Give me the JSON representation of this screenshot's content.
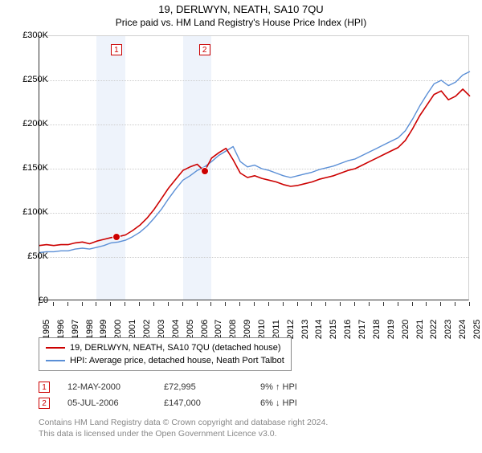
{
  "title": "19, DERLWYN, NEATH, SA10 7QU",
  "subtitle": "Price paid vs. HM Land Registry's House Price Index (HPI)",
  "chart": {
    "type": "line",
    "background_color": "#ffffff",
    "grid_color": "#cccccc",
    "axis_color": "#333333",
    "shade_color": "#eef3fb",
    "x": {
      "min": 1995,
      "max": 2025,
      "ticks": [
        1995,
        1996,
        1997,
        1998,
        1999,
        2000,
        2001,
        2002,
        2003,
        2004,
        2005,
        2006,
        2007,
        2008,
        2009,
        2010,
        2011,
        2012,
        2013,
        2014,
        2015,
        2016,
        2017,
        2018,
        2019,
        2020,
        2021,
        2022,
        2023,
        2024,
        2025
      ]
    },
    "y": {
      "min": 0,
      "max": 300000,
      "tick_step": 50000,
      "labels": [
        "£0",
        "£50K",
        "£100K",
        "£150K",
        "£200K",
        "£250K",
        "£300K"
      ]
    },
    "shaded_years": [
      1999,
      2000,
      2005,
      2006
    ],
    "series": [
      {
        "name": "19, DERLWYN, NEATH, SA10 7QU (detached house)",
        "color": "#cc0000",
        "line_width": 1.6,
        "data": [
          [
            1995,
            63000
          ],
          [
            1995.5,
            64000
          ],
          [
            1996,
            63000
          ],
          [
            1996.5,
            64000
          ],
          [
            1997,
            64000
          ],
          [
            1997.5,
            66000
          ],
          [
            1998,
            67000
          ],
          [
            1998.5,
            65000
          ],
          [
            1999,
            68000
          ],
          [
            1999.5,
            70000
          ],
          [
            2000,
            72000
          ],
          [
            2000.37,
            72995
          ],
          [
            2000.5,
            73000
          ],
          [
            2001,
            75000
          ],
          [
            2001.5,
            80000
          ],
          [
            2002,
            86000
          ],
          [
            2002.5,
            94000
          ],
          [
            2003,
            104000
          ],
          [
            2003.5,
            116000
          ],
          [
            2004,
            128000
          ],
          [
            2004.5,
            138000
          ],
          [
            2005,
            148000
          ],
          [
            2005.5,
            152000
          ],
          [
            2006,
            155000
          ],
          [
            2006.51,
            147000
          ],
          [
            2007,
            162000
          ],
          [
            2007.5,
            168000
          ],
          [
            2008,
            173000
          ],
          [
            2008.5,
            160000
          ],
          [
            2009,
            145000
          ],
          [
            2009.5,
            140000
          ],
          [
            2010,
            142000
          ],
          [
            2010.5,
            139000
          ],
          [
            2011,
            137000
          ],
          [
            2011.5,
            135000
          ],
          [
            2012,
            132000
          ],
          [
            2012.5,
            130000
          ],
          [
            2013,
            131000
          ],
          [
            2013.5,
            133000
          ],
          [
            2014,
            135000
          ],
          [
            2014.5,
            138000
          ],
          [
            2015,
            140000
          ],
          [
            2015.5,
            142000
          ],
          [
            2016,
            145000
          ],
          [
            2016.5,
            148000
          ],
          [
            2017,
            150000
          ],
          [
            2017.5,
            154000
          ],
          [
            2018,
            158000
          ],
          [
            2018.5,
            162000
          ],
          [
            2019,
            166000
          ],
          [
            2019.5,
            170000
          ],
          [
            2020,
            174000
          ],
          [
            2020.5,
            182000
          ],
          [
            2021,
            195000
          ],
          [
            2021.5,
            210000
          ],
          [
            2022,
            222000
          ],
          [
            2022.5,
            234000
          ],
          [
            2023,
            238000
          ],
          [
            2023.5,
            228000
          ],
          [
            2024,
            232000
          ],
          [
            2024.5,
            240000
          ],
          [
            2025,
            232000
          ]
        ]
      },
      {
        "name": "HPI: Average price, detached house, Neath Port Talbot",
        "color": "#5b8fd6",
        "line_width": 1.4,
        "data": [
          [
            1995,
            55000
          ],
          [
            1995.5,
            56000
          ],
          [
            1996,
            56000
          ],
          [
            1996.5,
            57000
          ],
          [
            1997,
            57000
          ],
          [
            1997.5,
            59000
          ],
          [
            1998,
            60000
          ],
          [
            1998.5,
            59000
          ],
          [
            1999,
            61000
          ],
          [
            1999.5,
            63000
          ],
          [
            2000,
            66000
          ],
          [
            2000.5,
            67000
          ],
          [
            2001,
            69000
          ],
          [
            2001.5,
            73000
          ],
          [
            2002,
            78000
          ],
          [
            2002.5,
            85000
          ],
          [
            2003,
            94000
          ],
          [
            2003.5,
            104000
          ],
          [
            2004,
            116000
          ],
          [
            2004.5,
            127000
          ],
          [
            2005,
            137000
          ],
          [
            2005.5,
            142000
          ],
          [
            2006,
            148000
          ],
          [
            2006.5,
            152000
          ],
          [
            2007,
            158000
          ],
          [
            2007.5,
            165000
          ],
          [
            2008,
            170000
          ],
          [
            2008.5,
            175000
          ],
          [
            2009,
            158000
          ],
          [
            2009.5,
            152000
          ],
          [
            2010,
            154000
          ],
          [
            2010.5,
            150000
          ],
          [
            2011,
            148000
          ],
          [
            2011.5,
            145000
          ],
          [
            2012,
            142000
          ],
          [
            2012.5,
            140000
          ],
          [
            2013,
            142000
          ],
          [
            2013.5,
            144000
          ],
          [
            2014,
            146000
          ],
          [
            2014.5,
            149000
          ],
          [
            2015,
            151000
          ],
          [
            2015.5,
            153000
          ],
          [
            2016,
            156000
          ],
          [
            2016.5,
            159000
          ],
          [
            2017,
            161000
          ],
          [
            2017.5,
            165000
          ],
          [
            2018,
            169000
          ],
          [
            2018.5,
            173000
          ],
          [
            2019,
            177000
          ],
          [
            2019.5,
            181000
          ],
          [
            2020,
            185000
          ],
          [
            2020.5,
            193000
          ],
          [
            2021,
            206000
          ],
          [
            2021.5,
            221000
          ],
          [
            2022,
            234000
          ],
          [
            2022.5,
            246000
          ],
          [
            2023,
            250000
          ],
          [
            2023.5,
            244000
          ],
          [
            2024,
            248000
          ],
          [
            2024.5,
            256000
          ],
          [
            2025,
            260000
          ]
        ]
      }
    ],
    "sale_points": [
      {
        "idx": "1",
        "x": 2000.37,
        "y": 72995
      },
      {
        "idx": "2",
        "x": 2006.51,
        "y": 147000
      }
    ]
  },
  "legend": {
    "items": [
      {
        "color": "#cc0000",
        "label": "19, DERLWYN, NEATH, SA10 7QU (detached house)"
      },
      {
        "color": "#5b8fd6",
        "label": "HPI: Average price, detached house, Neath Port Talbot"
      }
    ]
  },
  "sales": [
    {
      "idx": "1",
      "date": "12-MAY-2000",
      "price": "£72,995",
      "delta": "9% ↑ HPI"
    },
    {
      "idx": "2",
      "date": "05-JUL-2006",
      "price": "£147,000",
      "delta": "6% ↓ HPI"
    }
  ],
  "footnote": {
    "line1": "Contains HM Land Registry data © Crown copyright and database right 2024.",
    "line2": "This data is licensed under the Open Government Licence v3.0."
  }
}
